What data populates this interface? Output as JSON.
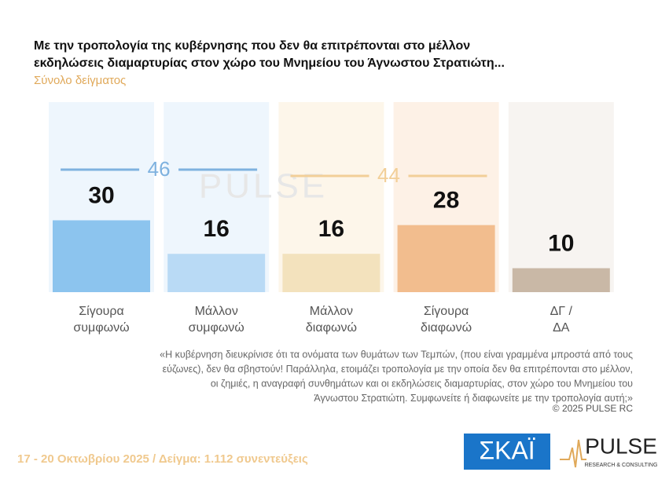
{
  "chart_data": {
    "type": "bar",
    "title": [
      "Με την τροπολογία της κυβέρνησης που δεν θα επιτρέπονται στο μέλλον",
      "εκδηλώσεις διαμαρτυρίας στον χώρο του Μνημείου του Άγνωστου Στρατιώτη..."
    ],
    "subtitle": "Σύνολο δείγματος",
    "categories": [
      "Σίγουρα\nσυμφωνώ",
      "Μάλλον\nσυμφωνώ",
      "Μάλλον\nδιαφωνώ",
      "Σίγουρα\nδιαφωνώ",
      "ΔΓ /\nΔΑ"
    ],
    "values": [
      30,
      16,
      16,
      28,
      10
    ],
    "colors": [
      "#8cc4ee",
      "#b9daf5",
      "#f3e2bd",
      "#f2bd8e",
      "#c9b8a6"
    ],
    "panel_colors": [
      "#eef6fd",
      "#eef6fd",
      "#fdf6ea",
      "#fdf1e6",
      "#f7f4f1"
    ],
    "totals": [
      {
        "value": 46,
        "color": "#7fb2df"
      },
      {
        "value": 44,
        "color": "#f2cf98"
      }
    ],
    "question": [
      "«Η κυβέρνηση διευκρίνισε ότι τα ονόματα των θυμάτων των Τεμπών, (που είναι γραμμένα μπροστά από τους",
      "εύζωνες), δεν θα σβηστούν! Παράλληλα, ετοιμάζει τροπολογία με την οποία δεν θα επιτρέπονται στο μέλλον,",
      "οι ζημιές, η αναγραφή συνθημάτων και οι εκδηλώσεις διαμαρτυρίας, στον χώρο του Μνημείου του",
      "Άγνωστου Στρατιώτη. Συμφωνείτε ή διαφωνείτε με την τροπολογία αυτή;»"
    ],
    "copyright": "© 2025 PULSE RC",
    "footer": "17 - 20 Οκτωβρίου 2025  /  Δείγμα:  1.112 συνεντεύξεις",
    "logo_skai": "ΣΚΑΪ",
    "logo_pulse": "PULSE",
    "logo_pulse_sub": "RESEARCH & CONSULTING"
  }
}
